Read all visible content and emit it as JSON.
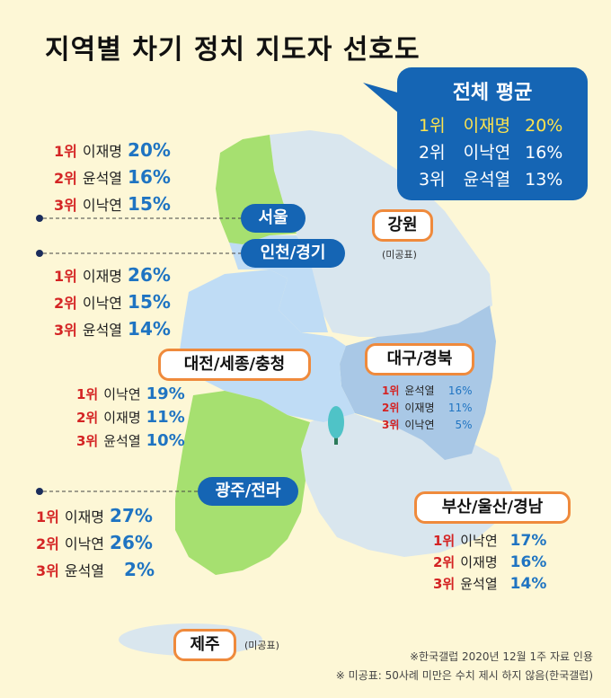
{
  "title": "지역별 차기 정치 지도자 선호도",
  "national": {
    "heading": "전체 평균",
    "rows": [
      {
        "rank": "1위",
        "name": "이재명",
        "pct": "20%"
      },
      {
        "rank": "2위",
        "name": "이낙연",
        "pct": "16%"
      },
      {
        "rank": "3위",
        "name": "윤석열",
        "pct": "13%"
      }
    ]
  },
  "regions": {
    "seoul": {
      "label": "서울",
      "rows": [
        {
          "rank": "1위",
          "name": "이재명",
          "pct": "20%"
        },
        {
          "rank": "2위",
          "name": "윤석열",
          "pct": "16%"
        },
        {
          "rank": "3위",
          "name": "이낙연",
          "pct": "15%"
        }
      ]
    },
    "incheon": {
      "label": "인천/경기",
      "rows": [
        {
          "rank": "1위",
          "name": "이재명",
          "pct": "26%"
        },
        {
          "rank": "2위",
          "name": "이낙연",
          "pct": "15%"
        },
        {
          "rank": "3위",
          "name": "윤석열",
          "pct": "14%"
        }
      ]
    },
    "gangwon": {
      "label": "강원",
      "note": "(미공표)"
    },
    "daejeon": {
      "label": "대전/세종/충청",
      "rows": [
        {
          "rank": "1위",
          "name": "이낙연",
          "pct": "19%"
        },
        {
          "rank": "2위",
          "name": "이재명",
          "pct": "11%"
        },
        {
          "rank": "3위",
          "name": "윤석열",
          "pct": "10%"
        }
      ]
    },
    "daegu": {
      "label": "대구/경북",
      "rows": [
        {
          "rank": "1위",
          "name": "윤석열",
          "pct": "16%"
        },
        {
          "rank": "2위",
          "name": "이재명",
          "pct": "11%"
        },
        {
          "rank": "3위",
          "name": "이낙연",
          "pct": "5%"
        }
      ]
    },
    "gwangju": {
      "label": "광주/전라",
      "rows": [
        {
          "rank": "1위",
          "name": "이재명",
          "pct": "27%"
        },
        {
          "rank": "2위",
          "name": "이낙연",
          "pct": "26%"
        },
        {
          "rank": "3위",
          "name": "윤석열",
          "pct": "2%"
        }
      ]
    },
    "busan": {
      "label": "부산/울산/경남",
      "rows": [
        {
          "rank": "1위",
          "name": "이낙연",
          "pct": "17%"
        },
        {
          "rank": "2위",
          "name": "이재명",
          "pct": "16%"
        },
        {
          "rank": "3위",
          "name": "윤석열",
          "pct": "14%"
        }
      ]
    },
    "jeju": {
      "label": "제주",
      "note": "(미공표)"
    }
  },
  "footnotes": [
    "※한국갤럽 2020년 12월 1주 자료 인용",
    "※ 미공표: 50사례 미만은 수치 제시 하지 않음(한국갤럽)"
  ],
  "colors": {
    "background": "#fdf7d6",
    "highlight_green": "#a6e070",
    "light_blue": "#bfdcf5",
    "mid_blue": "#a9c8e6",
    "pale_region": "#d9e6ee",
    "national_box": "#1565b4",
    "rank_red": "#d42424",
    "value_blue": "#1f74c2",
    "pill_orange": "#ef8a3c"
  }
}
